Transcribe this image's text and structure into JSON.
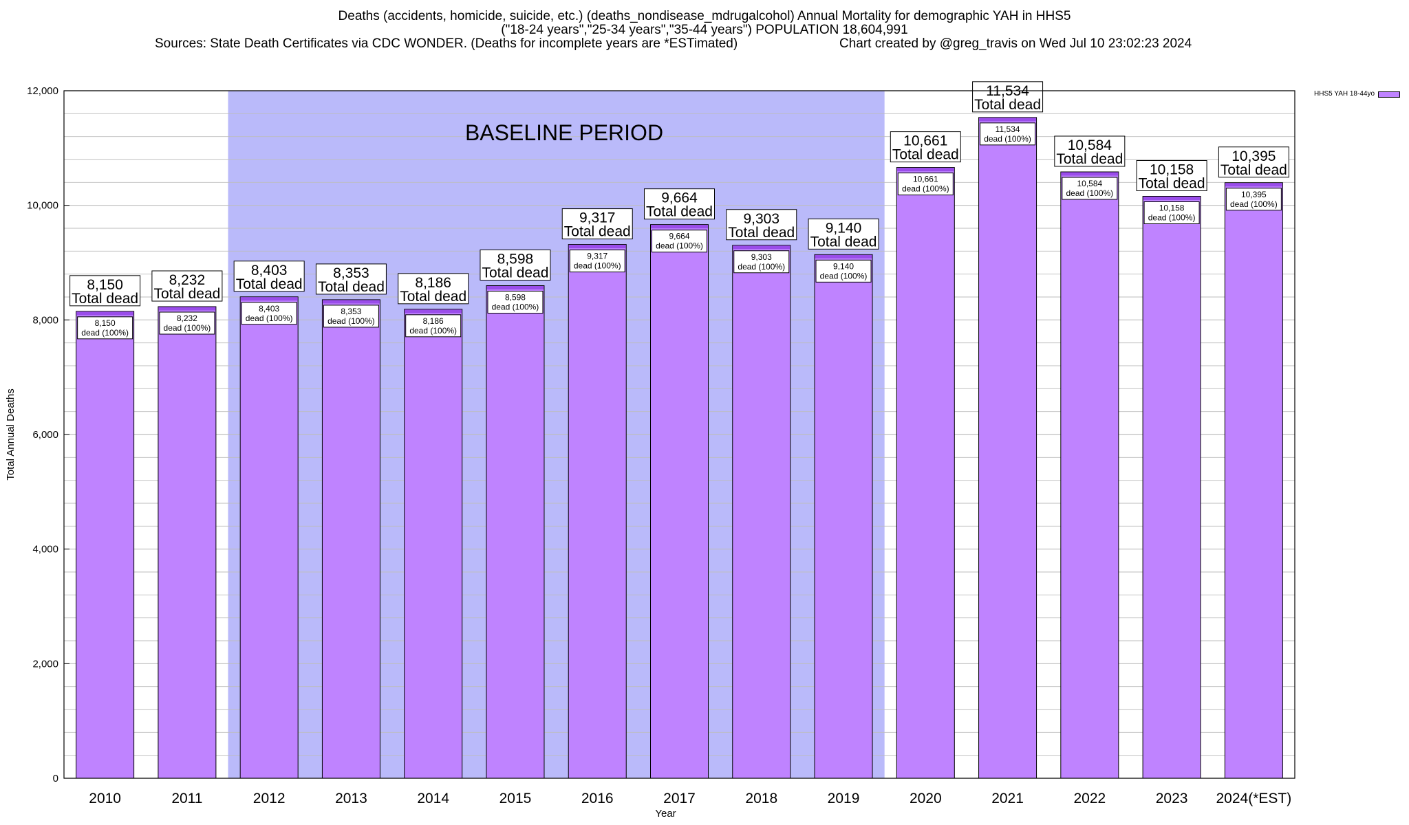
{
  "header": {
    "title_line1": "Deaths (accidents, homicide, suicide, etc.) (deaths_nondisease_mdrugalcohol) Annual Mortality for demographic YAH in HHS5",
    "title_line2": "(\"18-24 years\",\"25-34 years\",\"35-44 years\") POPULATION 18,604,991",
    "title_line3": "Sources: State Death Certificates via CDC WONDER. (Deaths for incomplete years are *ESTimated)",
    "credit": "Chart created by @greg_travis on Wed Jul 10 23:02:23 2024"
  },
  "legend": {
    "label": "HHS5 YAH 18-44yo"
  },
  "colors": {
    "bar_fill": "#bf83ff",
    "bar_top": "#9a4dea",
    "baseline_fill": "#babafa",
    "grid": "#bdbdbd",
    "background": "#ffffff"
  },
  "chart_data": {
    "type": "bar",
    "xlabel": "Year",
    "ylabel": "Total Annual Deaths",
    "ylim": [
      0,
      12000
    ],
    "yticks": [
      0,
      2000,
      4000,
      6000,
      8000,
      10000,
      12000
    ],
    "ytick_labels": [
      "0",
      "2,000",
      "4,000",
      "6,000",
      "8,000",
      "10,000",
      "12,000"
    ],
    "grid": true,
    "legend_position": "top-right",
    "categories": [
      "2010",
      "2011",
      "2012",
      "2013",
      "2014",
      "2015",
      "2016",
      "2017",
      "2018",
      "2019",
      "2020",
      "2021",
      "2022",
      "2023",
      "2024(*EST)"
    ],
    "series": [
      {
        "name": "HHS5 YAH 18-44yo",
        "values": [
          8150,
          8232,
          8403,
          8353,
          8186,
          8598,
          9317,
          9664,
          9303,
          9140,
          10661,
          11534,
          10584,
          10158,
          10395
        ]
      }
    ],
    "value_labels": [
      "8,150",
      "8,232",
      "8,403",
      "8,353",
      "8,186",
      "8,598",
      "9,317",
      "9,664",
      "9,303",
      "9,140",
      "10,661",
      "11,534",
      "10,584",
      "10,158",
      "10,395"
    ],
    "total_label_suffix": "Total dead",
    "inner_label_suffix": "dead (100%)",
    "baseline": {
      "label": "BASELINE PERIOD",
      "start": "2012",
      "end": "2019"
    }
  }
}
